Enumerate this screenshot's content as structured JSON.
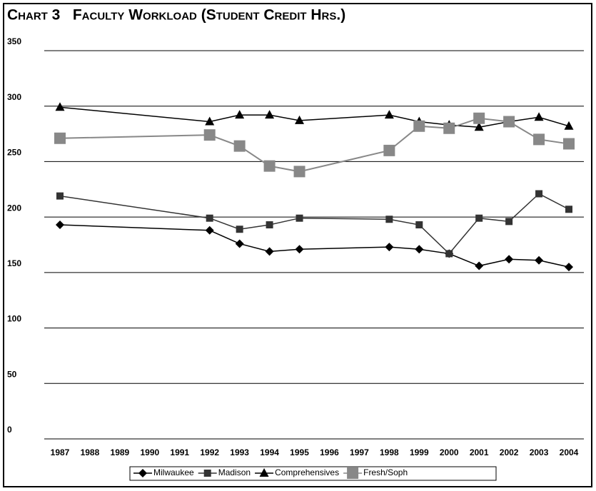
{
  "chart_data": {
    "type": "line",
    "title": "Chart 3   Faculty Workload (Student Credit Hrs.)",
    "x": [
      1987,
      1992,
      1993,
      1994,
      1995,
      1998,
      1999,
      2000,
      2001,
      2002,
      2003,
      2004
    ],
    "xlim": [
      1987,
      2004
    ],
    "xticks": [
      1987,
      1988,
      1989,
      1990,
      1991,
      1992,
      1993,
      1994,
      1995,
      1996,
      1997,
      1998,
      1999,
      2000,
      2001,
      2002,
      2003,
      2004
    ],
    "ylim": [
      0,
      350
    ],
    "yticks": [
      0,
      50,
      100,
      150,
      200,
      250,
      300,
      350
    ],
    "grid": true,
    "legend": "bottom",
    "series": [
      {
        "name": "Milwaukee",
        "color": "#000000",
        "marker": "diamond",
        "values": [
          193,
          188,
          176,
          169,
          171,
          173,
          171,
          167,
          156,
          162,
          161,
          155
        ]
      },
      {
        "name": "Madison",
        "color": "#333333",
        "marker": "square",
        "values": [
          219,
          199,
          189,
          193,
          199,
          198,
          193,
          167,
          199,
          196,
          221,
          207
        ]
      },
      {
        "name": "Comprehensives",
        "color": "#000000",
        "marker": "triangle",
        "values": [
          299,
          286,
          292,
          292,
          287,
          292,
          286,
          283,
          281,
          286,
          290,
          282
        ]
      },
      {
        "name": "Fresh/Soph",
        "color": "#888888",
        "marker": "bigsquare",
        "values": [
          271,
          274,
          264,
          246,
          241,
          260,
          282,
          280,
          289,
          286,
          270,
          266
        ]
      }
    ]
  }
}
